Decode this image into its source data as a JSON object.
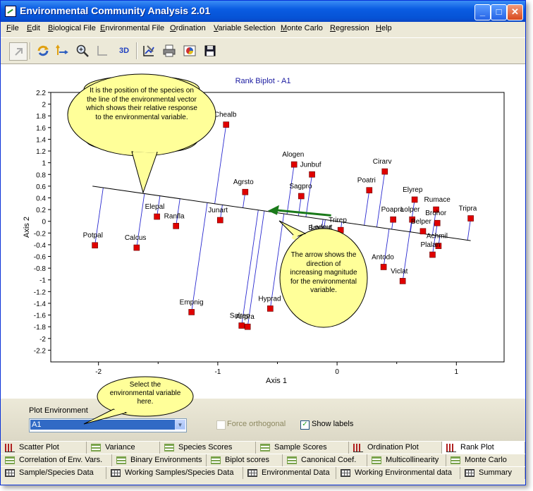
{
  "window": {
    "title": "Environmental Community Analysis 2.01",
    "minimize_glyph": "_",
    "maximize_glyph": "□",
    "close_glyph": "✕"
  },
  "menu": [
    {
      "u": "F",
      "rest": "ile"
    },
    {
      "u": "E",
      "rest": "dit"
    },
    {
      "u": "B",
      "rest": "iological File"
    },
    {
      "u": "E",
      "rest": "nvironmental File"
    },
    {
      "u": "O",
      "rest": "rdination"
    },
    {
      "u": "V",
      "rest": "ariable Selection"
    },
    {
      "u": "M",
      "rest": "onte Carlo"
    },
    {
      "u": "R",
      "rest": "egression"
    },
    {
      "u": "H",
      "rest": "elp"
    }
  ],
  "toolbar": {
    "icons": [
      "pointer-icon",
      "rotate-icon",
      "flip-axes-icon",
      "zoom-icon",
      "axes-icon",
      "3d-icon",
      "chart-properties-icon",
      "print-icon",
      "export-icon",
      "save-icon"
    ],
    "label_3d": "3D"
  },
  "chart_data": {
    "type": "scatter",
    "title": "Rank Biplot - A1",
    "xlabel": "Axis 1",
    "ylabel": "Axis 2",
    "xlim": [
      -2.4,
      1.4
    ],
    "ylim": [
      -2.4,
      2.2
    ],
    "xticks": [
      -2,
      -1,
      0,
      1
    ],
    "yticks": [
      2.2,
      2,
      1.8,
      1.6,
      1.4,
      1.2,
      1,
      0.8,
      0.6,
      0.4,
      0.2,
      0,
      -0.2,
      -0.4,
      -0.6,
      -0.8,
      -1,
      -1.2,
      -1.4,
      -1.6,
      -1.8,
      -2,
      -2.2
    ],
    "points": [
      {
        "label": "Chealb",
        "x": -0.93,
        "y": 1.65
      },
      {
        "label": "Alogen",
        "x": -0.36,
        "y": 0.97
      },
      {
        "label": "Junbuf",
        "x": -0.21,
        "y": 0.8
      },
      {
        "label": "Agrsto",
        "x": -0.77,
        "y": 0.5
      },
      {
        "label": "Sagpro",
        "x": -0.3,
        "y": 0.43
      },
      {
        "label": "Cirarv",
        "x": 0.4,
        "y": 0.85
      },
      {
        "label": "Poatri",
        "x": 0.27,
        "y": 0.53
      },
      {
        "label": "Elyrep",
        "x": 0.65,
        "y": 0.37
      },
      {
        "label": "Rumace",
        "x": 0.83,
        "y": 0.2
      },
      {
        "label": "Tripra",
        "x": 1.12,
        "y": 0.05
      },
      {
        "label": "Poapra",
        "x": 0.47,
        "y": 0.03
      },
      {
        "label": "Lolper",
        "x": 0.63,
        "y": 0.03
      },
      {
        "label": "Brohor",
        "x": 0.84,
        "y": -0.03
      },
      {
        "label": "Belper",
        "x": 0.72,
        "y": -0.17
      },
      {
        "label": "Achmil",
        "x": 0.85,
        "y": -0.42
      },
      {
        "label": "Plalan",
        "x": 0.8,
        "y": -0.57
      },
      {
        "label": "Antodo",
        "x": 0.39,
        "y": -0.78
      },
      {
        "label": "Viclat",
        "x": 0.55,
        "y": -1.02
      },
      {
        "label": "Trirep",
        "x": 0.03,
        "y": -0.15
      },
      {
        "label": "Ledout",
        "x": -0.12,
        "y": -0.27
      },
      {
        "label": "Bramut",
        "x": -0.14,
        "y": -0.28
      },
      {
        "label": "Junart",
        "x": -0.98,
        "y": 0.02
      },
      {
        "label": "Elepal",
        "x": -1.51,
        "y": 0.08
      },
      {
        "label": "Ranfla",
        "x": -1.35,
        "y": -0.08
      },
      {
        "label": "Potpal",
        "x": -2.03,
        "y": -0.41
      },
      {
        "label": "Calcus",
        "x": -1.68,
        "y": -0.45
      },
      {
        "label": "Empnig",
        "x": -1.22,
        "y": -1.55
      },
      {
        "label": "Hyprad",
        "x": -0.56,
        "y": -1.49
      },
      {
        "label": "Salrep",
        "x": -0.8,
        "y": -1.78
      },
      {
        "label": "Airpra",
        "x": -0.75,
        "y": -1.8
      }
    ],
    "vector_line": {
      "from": [
        -2.05,
        0.6
      ],
      "to": [
        1.12,
        -0.33
      ]
    },
    "arrow": {
      "from": [
        -0.05,
        0.1
      ],
      "to": [
        -0.58,
        0.18
      ]
    }
  },
  "callouts": {
    "position": "It is the position of the species on the line of the environmental vector which shows their relative response to the environmental variable.",
    "arrow": "The arrow shows the direction of increasing magnitude for the environmental variable.",
    "select": "Select the environmental variable here."
  },
  "controls": {
    "plot_env_label": "Plot Environment",
    "plot_env_value": "A1",
    "force_orth_label": "Force orthogonal",
    "show_labels_label": "Show labels",
    "show_labels_check": "✓"
  },
  "tabs": {
    "row1": [
      "Scatter Plot",
      "Variance",
      "Species Scores",
      "Sample Scores",
      "Ordination Plot",
      "Rank Plot"
    ],
    "row2": [
      "Correlation of Env. Vars.",
      "Binary Environments",
      "Biplot scores",
      "Canonical Coef.",
      "Multicollinearity",
      "Monte Carlo"
    ],
    "row3": [
      "Sample/Species Data",
      "Working Samples/Species Data",
      "Environmental Data",
      "Working Environmental data",
      "Summary"
    ]
  }
}
